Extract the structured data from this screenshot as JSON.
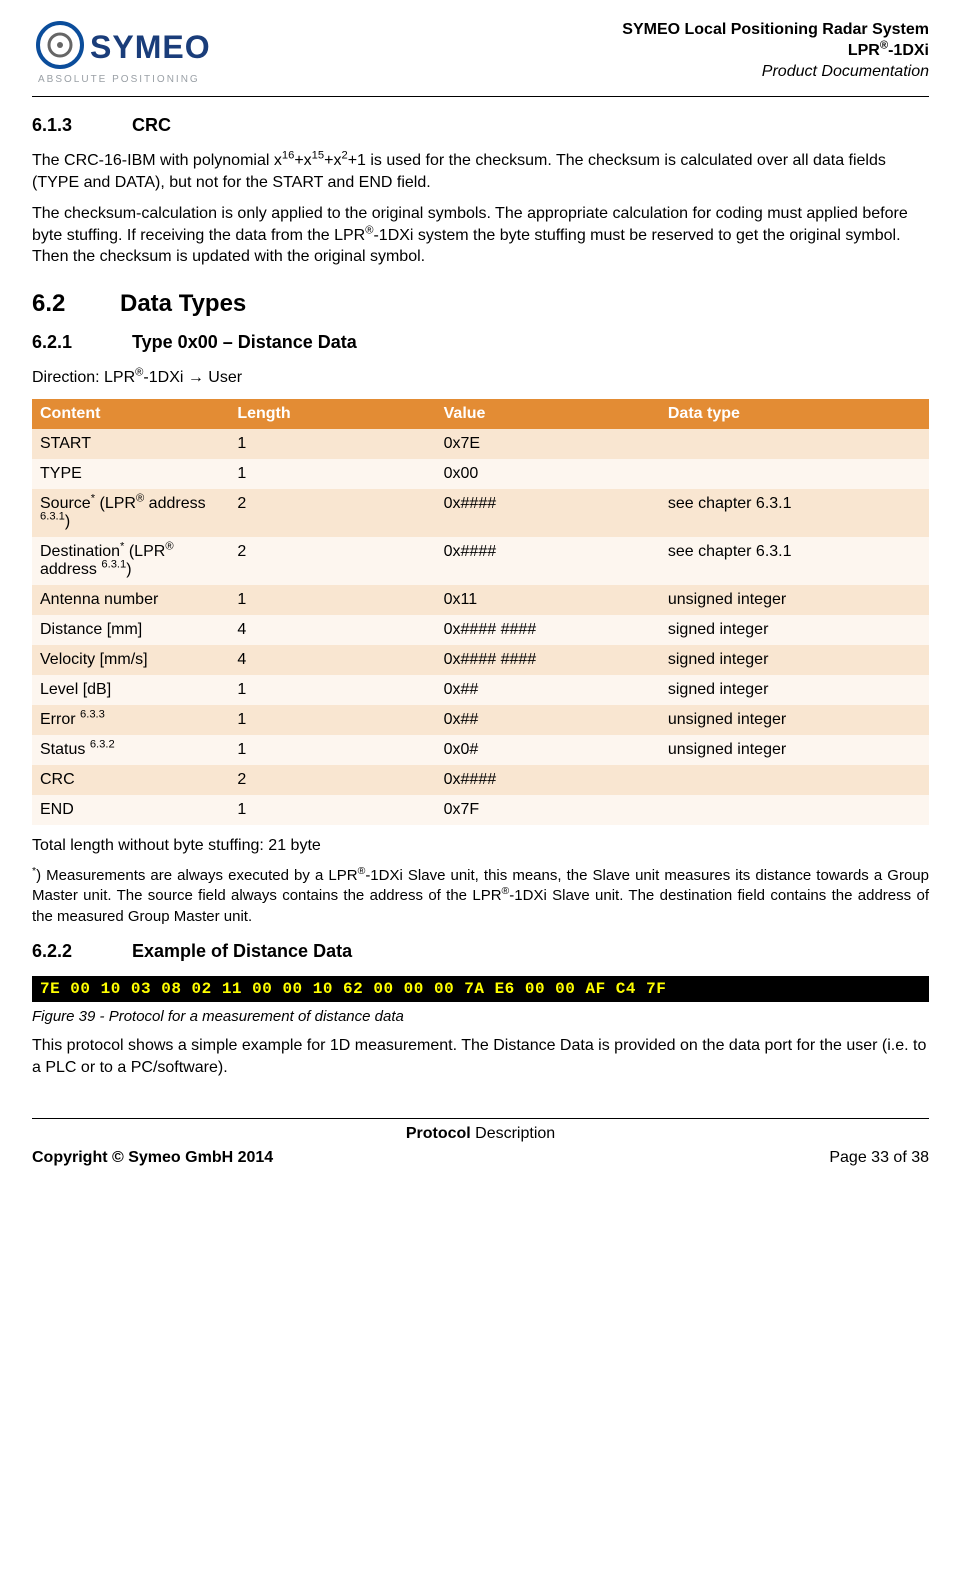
{
  "header": {
    "line1": "SYMEO Local Positioning Radar System",
    "line2_prefix": "LPR",
    "line2_sup": "®",
    "line2_suffix": "-1DXi",
    "line3": "Product Documentation",
    "logo": {
      "brand": "SYMEO",
      "tagline": "ABSOLUTE POSITIONING",
      "circle_blue": "#0b4d9b",
      "circle_inner": "#666666",
      "text_color": "#1a3d7a",
      "tagline_color": "#9aa0a6"
    }
  },
  "s613": {
    "num": "6.1.3",
    "title": "CRC",
    "p1_a": "The CRC-16-IBM with polynomial x",
    "p1_s1": "16",
    "p1_b": "+x",
    "p1_s2": "15",
    "p1_c": "+x",
    "p1_s3": "2",
    "p1_d": "+1 is used for the checksum. The checksum is calculated over all data fields (TYPE and DATA), but not for the START and END field.",
    "p2_a": "The checksum-calculation is only applied to the original symbols. The appropriate calculation for coding must applied before byte stuffing. If receiving the data from the LPR",
    "p2_sup": "®",
    "p2_b": "-1DXi system the byte stuffing must be reserved to get the original symbol. Then the checksum is updated with the original symbol."
  },
  "s62": {
    "num": "6.2",
    "title": "Data Types"
  },
  "s621": {
    "num": "6.2.1",
    "title": "Type 0x00 – Distance Data",
    "dir_a": "Direction: LPR",
    "dir_sup": "®",
    "dir_b": "-1DXi → User"
  },
  "table": {
    "colors": {
      "header_bg": "#e38c34",
      "odd_bg": "#f9e6d1",
      "even_bg": "#fdf6ef"
    },
    "headers": {
      "c0": "Content",
      "c1": "Length",
      "c2": "Value",
      "c3": "Data type"
    },
    "rows": [
      {
        "content": "START",
        "length": "1",
        "value": "0x7E",
        "dtype": "",
        "sup_content": "",
        "sup2_content": "",
        "has_lpr": false
      },
      {
        "content": "TYPE",
        "length": "1",
        "value": "0x00",
        "dtype": "",
        "sup_content": "",
        "sup2_content": "",
        "has_lpr": false
      },
      {
        "content_pre": "Source",
        "sup_content": "*",
        "content_mid": " (LPR",
        "sup2_content": "®",
        "content_post": " address ",
        "sup3_content": "6.3.1",
        "content_end": ")",
        "length": "2",
        "value": "0x####",
        "dtype": "see chapter 6.3.1",
        "has_lpr": true
      },
      {
        "content_pre": "Destination",
        "sup_content": "*",
        "content_mid": " (LPR",
        "sup2_content": "®",
        "content_post": " address ",
        "sup3_content": "6.3.1",
        "content_end": ")",
        "length": "2",
        "value": "0x####",
        "dtype": "see chapter 6.3.1",
        "has_lpr": true
      },
      {
        "content": "Antenna number",
        "length": "1",
        "value": "0x11",
        "dtype": "unsigned integer",
        "sup_content": "",
        "has_lpr": false
      },
      {
        "content": "Distance [mm]",
        "length": "4",
        "value": "0x#### ####",
        "dtype": "signed integer",
        "sup_content": "",
        "has_lpr": false
      },
      {
        "content": "Velocity [mm/s]",
        "length": "4",
        "value": "0x#### ####",
        "dtype": "signed integer",
        "sup_content": "",
        "has_lpr": false
      },
      {
        "content": "Level [dB]",
        "length": "1",
        "value": "0x##",
        "dtype": "signed integer",
        "sup_content": "",
        "has_lpr": false
      },
      {
        "content": "Error ",
        "sup_content": "6.3.3",
        "length": "1",
        "value": "0x##",
        "dtype": "unsigned integer",
        "has_lpr": false
      },
      {
        "content": "Status ",
        "sup_content": "6.3.2",
        "length": "1",
        "value": "0x0#",
        "dtype": "unsigned integer",
        "has_lpr": false
      },
      {
        "content": "CRC",
        "length": "2",
        "value": "0x####",
        "dtype": "",
        "sup_content": "",
        "has_lpr": false
      },
      {
        "content": "END",
        "length": "1",
        "value": "0x7F",
        "dtype": "",
        "sup_content": "",
        "has_lpr": false
      }
    ]
  },
  "after_table": {
    "total": "Total length without byte stuffing: 21 byte",
    "fn_sup": "*",
    "fn_a": ") Measurements are always executed by a LPR",
    "fn_sup2": "®",
    "fn_b": "-1DXi Slave unit, this means, the Slave unit measures its distance towards a Group Master unit. The source field always contains the address of the LPR",
    "fn_sup3": "®",
    "fn_c": "-1DXi Slave unit. The destination field contains the address of the measured Group Master unit."
  },
  "s622": {
    "num": "6.2.2",
    "title": "Example of Distance Data",
    "hex": "7E 00 10 03 08 02 11 00 00 10 62 00 00 00 7A E6 00 00 AF C4 7F",
    "figcap": "Figure 39 - Protocol for a measurement of distance data",
    "para": "This protocol shows a simple example for 1D measurement. The Distance Data is provided on the data port for the user (i.e. to a PLC or to a PC/software)."
  },
  "footer": {
    "center_a": "Protocol",
    "center_b": " Description",
    "left": "Copyright © Symeo GmbH 2014",
    "right": "Page 33 of 38"
  }
}
